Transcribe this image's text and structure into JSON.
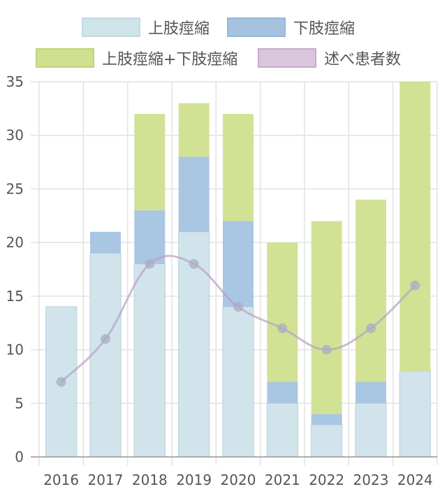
{
  "chart_data": {
    "type": "bar",
    "stacked": true,
    "categories": [
      "2016",
      "2017",
      "2018",
      "2019",
      "2020",
      "2021",
      "2022",
      "2023",
      "2024"
    ],
    "series": [
      {
        "name": "上肢痙縮",
        "type": "bar",
        "color": "#cfe3ea",
        "values": [
          14,
          19,
          18,
          21,
          14,
          5,
          3,
          5,
          8
        ]
      },
      {
        "name": "下肢痙縮",
        "type": "bar",
        "color": "#a4c3e0",
        "values": [
          0,
          2,
          5,
          7,
          8,
          2,
          1,
          2,
          0
        ]
      },
      {
        "name": "上肢痙縮+下肢痙縮",
        "type": "bar",
        "color": "#cfe08f",
        "values": [
          0,
          0,
          9,
          5,
          10,
          13,
          18,
          17,
          27
        ]
      },
      {
        "name": "述べ患者数",
        "type": "line",
        "color": "#d7c1dc",
        "values": [
          7,
          11,
          18,
          18,
          14,
          12,
          10,
          12,
          16
        ]
      }
    ],
    "ylim": [
      0,
      35
    ],
    "yticks": [
      0,
      5,
      10,
      15,
      20,
      25,
      30,
      35
    ],
    "grid": true,
    "legend_position": "top"
  }
}
